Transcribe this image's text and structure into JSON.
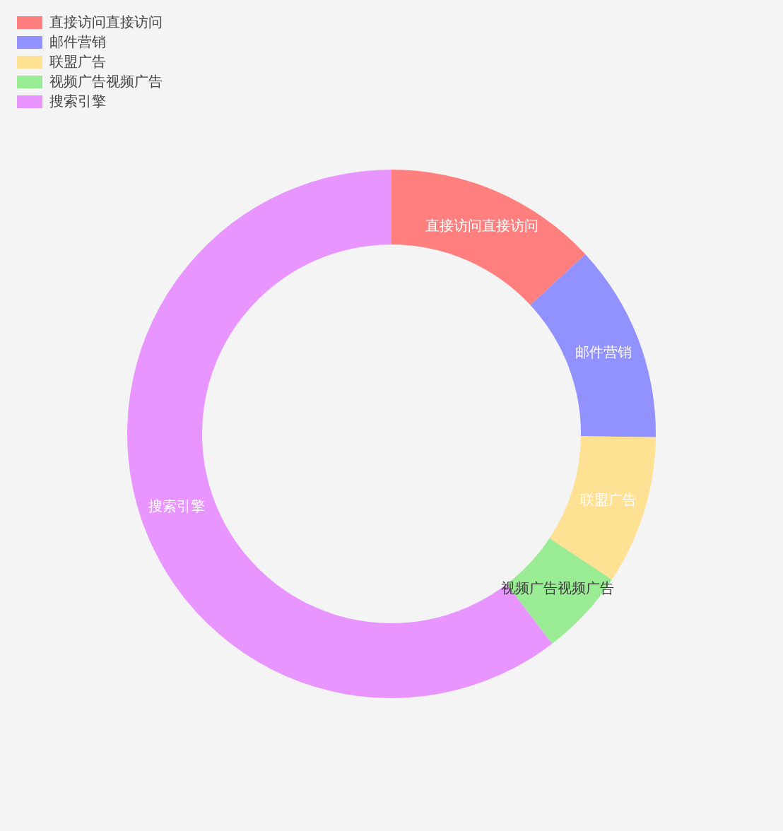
{
  "chart_data": {
    "type": "donut",
    "categories": [
      "直接访问直接访问",
      "邮件营销",
      "联盟广告",
      "视频广告视频广告",
      "搜索引擎"
    ],
    "values": [
      13.1,
      12.1,
      9.1,
      5.3,
      60.4
    ],
    "colors": [
      "#ff7f7f",
      "#9292ff",
      "#ffe193",
      "#99ec94",
      "#e895ff"
    ],
    "legend": "top left"
  }
}
